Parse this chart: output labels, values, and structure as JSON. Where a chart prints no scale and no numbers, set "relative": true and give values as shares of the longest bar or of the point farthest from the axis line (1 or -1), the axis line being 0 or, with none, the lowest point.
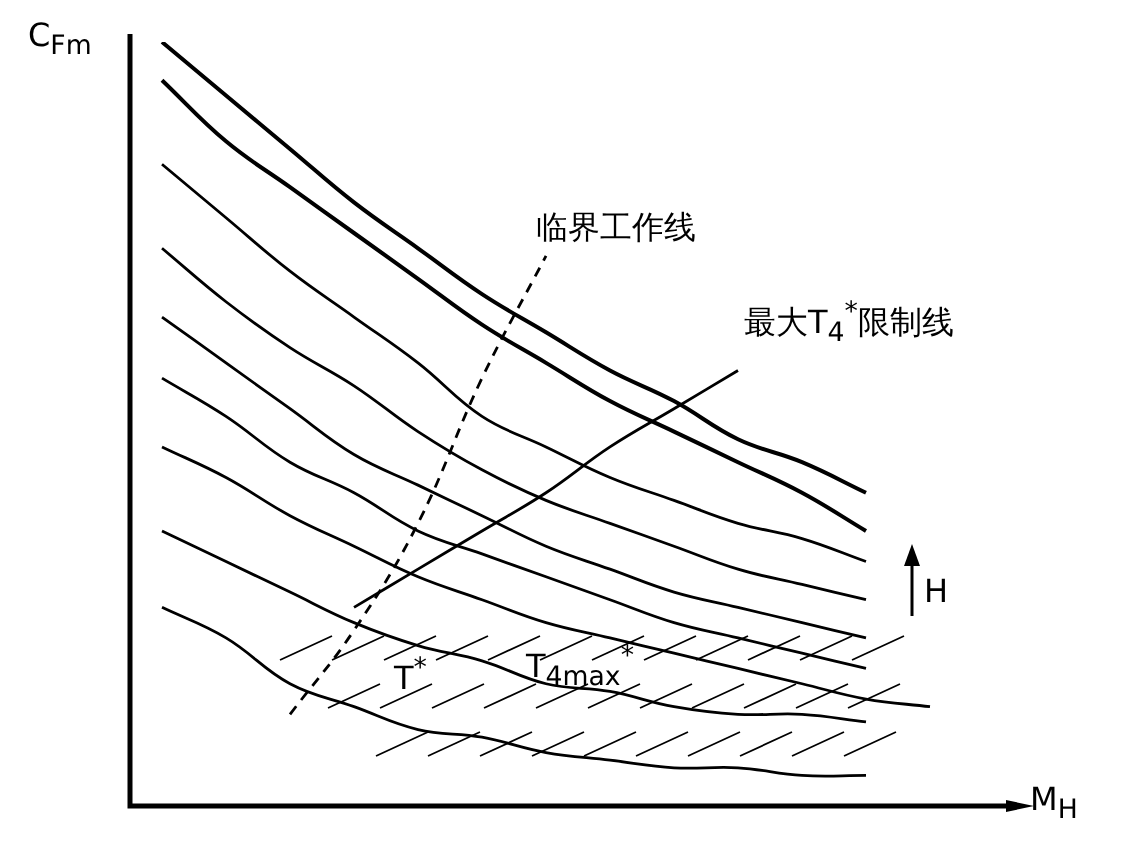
{
  "chart_data": {
    "type": "line",
    "relative": true,
    "xlabel": "M$_{H}$",
    "ylabel": "C$_{Fm}$",
    "marker": "none",
    "line_style": "solid",
    "categories": [
      null,
      null,
      null,
      null,
      null,
      null,
      null,
      null,
      null,
      null,
      null,
      null,
      null,
      null
    ],
    "series": [
      {
        "color": "#000000",
        "values": [
          1.0,
          0.93,
          0.86,
          0.79,
          0.73,
          0.67,
          0.62,
          0.57,
          0.53,
          0.48,
          0.45,
          0.41,
          null,
          null
        ]
      },
      {
        "color": "#000000",
        "values": [
          0.95,
          0.87,
          0.81,
          0.75,
          0.69,
          0.63,
          0.58,
          0.53,
          0.49,
          0.45,
          0.41,
          0.36,
          null,
          null
        ]
      },
      {
        "color": "#000000",
        "values": [
          0.84,
          0.77,
          0.7,
          0.64,
          0.58,
          0.51,
          0.47,
          0.43,
          0.4,
          0.37,
          0.35,
          0.32,
          null,
          null
        ]
      },
      {
        "color": "#000000",
        "values": [
          0.73,
          0.66,
          0.6,
          0.55,
          0.49,
          0.44,
          0.4,
          0.37,
          0.34,
          0.31,
          0.29,
          0.27,
          null,
          null
        ]
      },
      {
        "color": "#000000",
        "values": [
          0.64,
          0.58,
          0.52,
          0.46,
          0.42,
          0.38,
          0.34,
          0.31,
          0.28,
          0.26,
          0.24,
          0.22,
          null,
          null
        ]
      },
      {
        "color": "#000000",
        "values": [
          0.56,
          0.51,
          0.45,
          0.41,
          0.36,
          0.33,
          0.3,
          0.27,
          0.24,
          0.22,
          0.2,
          0.18,
          null,
          null
        ]
      },
      {
        "color": "#000000",
        "values": [
          0.47,
          0.43,
          0.38,
          0.34,
          0.3,
          0.27,
          0.24,
          0.22,
          0.2,
          0.18,
          0.16,
          0.14,
          0.13,
          null
        ]
      },
      {
        "color": "#000000",
        "values": [
          0.36,
          0.32,
          0.28,
          0.24,
          0.21,
          0.19,
          0.16,
          0.15,
          0.13,
          0.12,
          0.12,
          0.11,
          null,
          null
        ]
      },
      {
        "color": "#000000",
        "values": [
          0.26,
          0.22,
          0.16,
          0.13,
          0.1,
          0.09,
          0.07,
          0.06,
          0.05,
          0.05,
          0.04,
          0.04,
          null,
          null
        ]
      },
      {
        "name": "临界工作线",
        "color": "#000000",
        "line_style": "dashed",
        "values": [
          null,
          null,
          0.12,
          0.23,
          0.37,
          0.56,
          0.72,
          null,
          null,
          null,
          null,
          null,
          null,
          null
        ]
      },
      {
        "name": "最大T$_{4}$$^{*}$限制线",
        "color": "#000000",
        "values": [
          null,
          null,
          null,
          0.26,
          0.31,
          0.36,
          0.41,
          0.47,
          0.52,
          0.57,
          null,
          null,
          null,
          null
        ]
      }
    ],
    "annotations": [
      "T$^{*}$",
      "T$_{4max}$$^{*}$",
      "H"
    ]
  }
}
